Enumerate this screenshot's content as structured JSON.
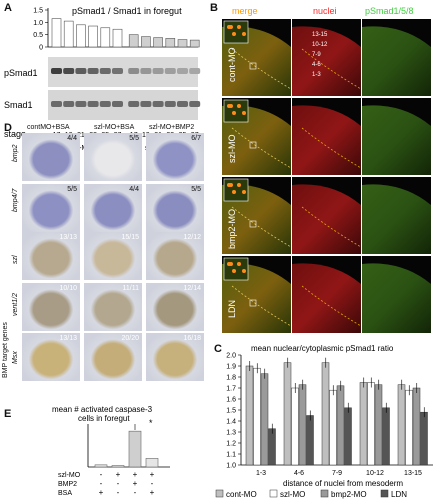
{
  "panelA": {
    "label": "A",
    "chart_title": "pSmad1 / Smad1  in foregut",
    "y_ticks": [
      "1.5",
      "1.0",
      "0.5",
      "0"
    ],
    "row_labels": [
      "pSmad1",
      "Smad1",
      "stage"
    ],
    "stages": [
      "17",
      "19",
      "21",
      "23",
      "25",
      "27"
    ],
    "group_labels": [
      "cont-MO",
      "szl-MO"
    ]
  },
  "panelB": {
    "label": "B",
    "channels": [
      "merge",
      "nuclei",
      "pSmad1/5/8"
    ],
    "conditions": [
      "cont-MO",
      "szl-MO",
      "bmp2-MO",
      "LDN"
    ],
    "nuclei_rows": [
      "1-3",
      "4-6",
      "7-9",
      "10-12",
      "13-15"
    ]
  },
  "panelC": {
    "label": "C",
    "title": "mean nuclear/cytoplasmic pSmad1 ratio",
    "xlabel": "distance of nuclei from mesoderm",
    "y_ticks": [
      "2.0",
      "1.9",
      "1.8",
      "1.7",
      "1.6",
      "1.5",
      "1.4",
      "1.3",
      "1.2",
      "1.1",
      "1.0"
    ],
    "legend": [
      "cont-MO",
      "szl-MO",
      "bmp2-MO",
      "LDN"
    ]
  },
  "panelD": {
    "label": "D",
    "columns": [
      "contMO+BSA",
      "szl-MO+BSA",
      "szl-MO+BMP2"
    ],
    "rows": [
      "bmp2",
      "bmp4/7",
      "szl",
      "vent1/2",
      "Msx"
    ],
    "group_label": "BMP target genes",
    "counts": [
      [
        "4/4",
        "5/5",
        "6/7"
      ],
      [
        "5/5",
        "4/4",
        "5/5"
      ],
      [
        "13/13",
        "15/15",
        "12/12"
      ],
      [
        "10/10",
        "11/11",
        "12/14"
      ],
      [
        "13/13",
        "20/20",
        "16/18"
      ]
    ]
  },
  "panelE": {
    "label": "E",
    "title_line1": "mean # activated caspase-3",
    "title_line2": "cells in foregut",
    "star": "*",
    "row_labels": [
      "szl-MO",
      "BMP2",
      "BSA"
    ],
    "signs": [
      [
        "-",
        "+",
        "+",
        "+"
      ],
      [
        "-",
        "-",
        "+",
        "-"
      ],
      [
        "+",
        "-",
        "-",
        "+"
      ]
    ]
  },
  "chart_data": [
    {
      "type": "bar",
      "title": "pSmad1 / Smad1  in foregut",
      "categories": [
        "17",
        "19",
        "21",
        "23",
        "25",
        "27",
        "17",
        "19",
        "21",
        "23",
        "25",
        "27"
      ],
      "series": [
        {
          "values": [
            1.15,
            1.05,
            0.9,
            0.85,
            0.78,
            0.72,
            0.5,
            0.42,
            0.38,
            0.35,
            0.3,
            0.28
          ]
        }
      ],
      "ylim": [
        0,
        1.5
      ]
    },
    {
      "type": "bar",
      "title": "mean nuclear/cytoplasmic pSmad1 ratio",
      "xlabel": "distance of nuclei from mesoderm",
      "categories": [
        "1-3",
        "4-6",
        "7-9",
        "10-12",
        "13-15"
      ],
      "series": [
        {
          "name": "cont-MO",
          "values": [
            1.9,
            1.93,
            1.93,
            1.75,
            1.73
          ]
        },
        {
          "name": "szl-MO",
          "values": [
            1.88,
            1.7,
            1.68,
            1.75,
            1.68
          ]
        },
        {
          "name": "bmp2-MO",
          "values": [
            1.83,
            1.73,
            1.72,
            1.73,
            1.7
          ]
        },
        {
          "name": "LDN",
          "values": [
            1.33,
            1.45,
            1.52,
            1.52,
            1.48
          ]
        }
      ],
      "ylim": [
        1.0,
        2.0
      ],
      "colors": [
        "#bfbfbf",
        "#ffffff",
        "#9a9a9a",
        "#555555"
      ]
    },
    {
      "type": "bar",
      "title": "mean # activated caspase-3 cells in foregut",
      "categories": [
        "1",
        "2",
        "3",
        "4"
      ],
      "series": [
        {
          "values": [
            3,
            2,
            50,
            12
          ]
        }
      ],
      "ylim": [
        0,
        60
      ]
    }
  ]
}
